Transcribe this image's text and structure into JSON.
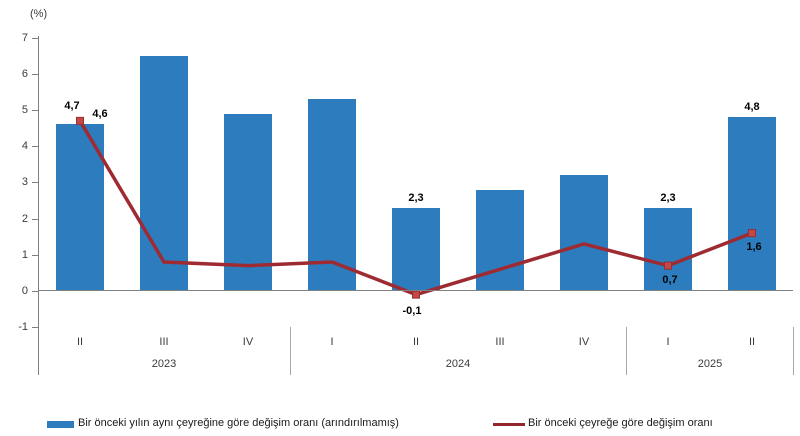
{
  "chart_data": {
    "type": "bar+line",
    "unit_label": "(%)",
    "quarters": [
      "II",
      "III",
      "IV",
      "I",
      "II",
      "III",
      "IV",
      "I",
      "II"
    ],
    "year_groups": [
      {
        "label": "2023",
        "from": 0,
        "to": 2
      },
      {
        "label": "2024",
        "from": 3,
        "to": 6
      },
      {
        "label": "2025",
        "from": 7,
        "to": 8
      }
    ],
    "yticks": [
      7,
      6,
      5,
      4,
      3,
      2,
      1,
      0,
      -1
    ],
    "ylim": [
      -1,
      7
    ],
    "grid": false,
    "legend_position": "bottom",
    "series": [
      {
        "name": "Bir önceki yılın aynı çeyreğine göre değişim oranı (arındırılmamış)",
        "type": "bar",
        "color": "#2c7cbe",
        "values": [
          4.6,
          6.5,
          4.9,
          5.3,
          2.3,
          2.8,
          3.2,
          2.3,
          4.8
        ],
        "point_labels": [
          {
            "index": 0,
            "text": "4,6"
          },
          {
            "index": 4,
            "text": "2,3"
          },
          {
            "index": 7,
            "text": "2,3"
          },
          {
            "index": 8,
            "text": "4,8"
          }
        ]
      },
      {
        "name": "Bir önceki çeyreğe göre değişim oranı",
        "type": "line",
        "color": "#9e2a32",
        "marker_color": "#bf4a47",
        "values": [
          4.7,
          0.8,
          0.7,
          0.8,
          -0.1,
          0.6,
          1.3,
          0.7,
          1.6
        ],
        "marker_indices": [
          0,
          4,
          7,
          8
        ],
        "point_labels": [
          {
            "index": 0,
            "text": "4,7"
          },
          {
            "index": 4,
            "text": "-0,1"
          },
          {
            "index": 7,
            "text": "0,7"
          },
          {
            "index": 8,
            "text": "1,6"
          }
        ]
      }
    ],
    "colors": {
      "axis": "#808080",
      "separator": "#a9a9a9",
      "tick_text": "#3b3b3b",
      "value_text": "#000000"
    }
  },
  "legend": {
    "items": [
      {
        "swatch": "bar",
        "label": "Bir önceki yılın aynı çeyreğine göre değişim oranı (arındırılmamış)"
      },
      {
        "swatch": "line",
        "label": "Bir önceki çeyreğe göre değişim oranı"
      }
    ]
  }
}
